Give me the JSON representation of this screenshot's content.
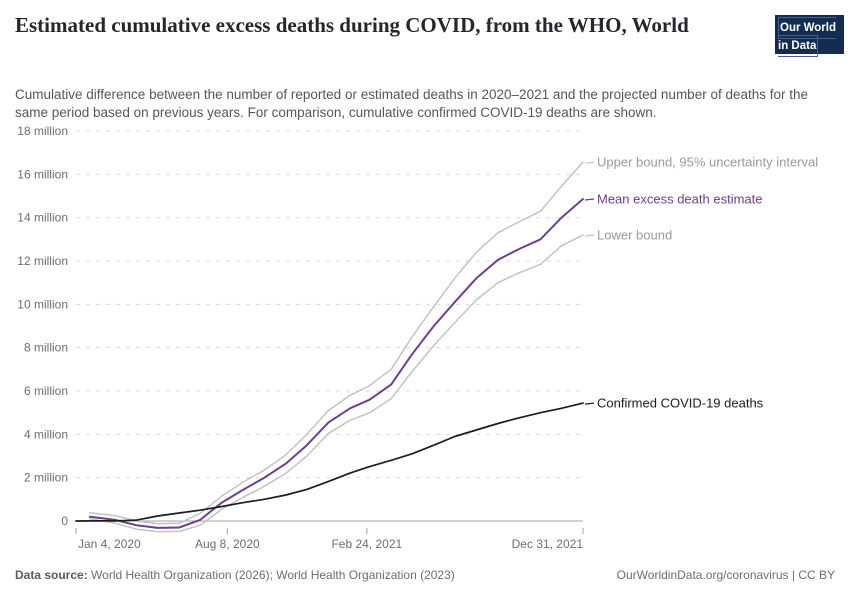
{
  "header": {
    "title": "Estimated cumulative excess deaths during COVID, from the WHO, World",
    "subtitle": "Cumulative difference between the number of reported or estimated deaths in 2020–2021 and the projected number of deaths for the same period based on previous years. For comparison, cumulative confirmed COVID-19 deaths are shown.",
    "logo": {
      "line1": "Our World",
      "line2": "in Data"
    }
  },
  "footer": {
    "datasource_label": "Data source:",
    "datasource_value": " World Health Organization (2026); World Health Organization (2023)",
    "link": "OurWorldinData.org/coronavirus",
    "separator": " | ",
    "license": "CC BY"
  },
  "colors": {
    "mean_line": "#6d3e91",
    "bound_line": "#c3c3c3",
    "bound_label": "#9a9a9a",
    "confirmed_line": "#1d1d1d",
    "gridline": "#dadada",
    "axis_line": "#a3a3a3",
    "axis_text": "#6e6e6e",
    "logo_bg": "#132c4f",
    "logo_red": "#d93a2b"
  },
  "chart_data": {
    "type": "line",
    "title": "Estimated cumulative excess deaths during COVID, from the WHO, World",
    "x_unit": "days since Jan 4, 2020",
    "y_unit": "million deaths",
    "ylim": [
      -0.7,
      18
    ],
    "grid": "horizontal-dashed",
    "legend_position": "end-of-line labels, right side",
    "yticks": [
      {
        "value": 0,
        "label": "0"
      },
      {
        "value": 2,
        "label": "2 million"
      },
      {
        "value": 4,
        "label": "4 million"
      },
      {
        "value": 6,
        "label": "6 million"
      },
      {
        "value": 8,
        "label": "8 million"
      },
      {
        "value": 10,
        "label": "10 million"
      },
      {
        "value": 12,
        "label": "12 million"
      },
      {
        "value": 14,
        "label": "14 million"
      },
      {
        "value": 16,
        "label": "16 million"
      },
      {
        "value": 18,
        "label": "18 million"
      }
    ],
    "xticks": [
      {
        "day": 0,
        "label": "Jan 4, 2020",
        "anchor": "start"
      },
      {
        "day": 217,
        "label": "Aug 8, 2020",
        "anchor": "middle"
      },
      {
        "day": 417,
        "label": "Feb 24, 2021",
        "anchor": "middle"
      },
      {
        "day": 727,
        "label": "Dec 31, 2021",
        "anchor": "end"
      }
    ],
    "series": [
      {
        "id": "upper-bound",
        "name": "Upper bound, 95% uncertainty interval",
        "color": "#c3c3c3",
        "label_color": "#9a9a9a",
        "width": 1.5,
        "points": [
          [
            20,
            0.38
          ],
          [
            56,
            0.25
          ],
          [
            87,
            0.0
          ],
          [
            117,
            -0.12
          ],
          [
            148,
            -0.1
          ],
          [
            178,
            0.35
          ],
          [
            209,
            1.15
          ],
          [
            240,
            1.8
          ],
          [
            270,
            2.35
          ],
          [
            301,
            3.05
          ],
          [
            331,
            4.0
          ],
          [
            362,
            5.1
          ],
          [
            393,
            5.8
          ],
          [
            421,
            6.25
          ],
          [
            452,
            7.0
          ],
          [
            482,
            8.5
          ],
          [
            513,
            9.9
          ],
          [
            543,
            11.2
          ],
          [
            574,
            12.4
          ],
          [
            605,
            13.3
          ],
          [
            635,
            13.8
          ],
          [
            666,
            14.3
          ],
          [
            696,
            15.45
          ],
          [
            727,
            16.56
          ]
        ]
      },
      {
        "id": "mean",
        "name": "Mean excess death estimate",
        "color": "#6d3e91",
        "label_color": "#6d3e91",
        "width": 2,
        "points": [
          [
            20,
            0.2
          ],
          [
            56,
            0.05
          ],
          [
            87,
            -0.2
          ],
          [
            117,
            -0.32
          ],
          [
            148,
            -0.3
          ],
          [
            178,
            0.05
          ],
          [
            209,
            0.85
          ],
          [
            240,
            1.45
          ],
          [
            270,
            2.0
          ],
          [
            301,
            2.65
          ],
          [
            331,
            3.5
          ],
          [
            362,
            4.55
          ],
          [
            393,
            5.2
          ],
          [
            421,
            5.6
          ],
          [
            452,
            6.3
          ],
          [
            482,
            7.7
          ],
          [
            513,
            9.0
          ],
          [
            543,
            10.1
          ],
          [
            574,
            11.2
          ],
          [
            605,
            12.05
          ],
          [
            635,
            12.55
          ],
          [
            666,
            13.0
          ],
          [
            696,
            14.0
          ],
          [
            727,
            14.86
          ]
        ]
      },
      {
        "id": "lower-bound",
        "name": "Lower bound",
        "color": "#c3c3c3",
        "label_color": "#9a9a9a",
        "width": 1.5,
        "points": [
          [
            20,
            0.1
          ],
          [
            56,
            -0.1
          ],
          [
            87,
            -0.38
          ],
          [
            117,
            -0.5
          ],
          [
            148,
            -0.48
          ],
          [
            178,
            -0.2
          ],
          [
            209,
            0.55
          ],
          [
            240,
            1.1
          ],
          [
            270,
            1.6
          ],
          [
            301,
            2.2
          ],
          [
            331,
            3.0
          ],
          [
            362,
            4.05
          ],
          [
            393,
            4.65
          ],
          [
            421,
            5.0
          ],
          [
            452,
            5.65
          ],
          [
            482,
            6.9
          ],
          [
            513,
            8.1
          ],
          [
            543,
            9.15
          ],
          [
            574,
            10.2
          ],
          [
            605,
            11.0
          ],
          [
            635,
            11.45
          ],
          [
            666,
            11.85
          ],
          [
            696,
            12.7
          ],
          [
            727,
            13.2
          ]
        ]
      },
      {
        "id": "confirmed",
        "name": "Confirmed COVID-19 deaths",
        "color": "#1d1d1d",
        "label_color": "#1d1d1d",
        "width": 1.7,
        "points": [
          [
            0,
            0
          ],
          [
            27,
            0.003
          ],
          [
            56,
            0.006
          ],
          [
            87,
            0.042
          ],
          [
            117,
            0.23
          ],
          [
            148,
            0.37
          ],
          [
            178,
            0.5
          ],
          [
            209,
            0.67
          ],
          [
            240,
            0.85
          ],
          [
            270,
            1.0
          ],
          [
            301,
            1.2
          ],
          [
            331,
            1.46
          ],
          [
            362,
            1.83
          ],
          [
            393,
            2.21
          ],
          [
            421,
            2.51
          ],
          [
            452,
            2.8
          ],
          [
            482,
            3.1
          ],
          [
            513,
            3.5
          ],
          [
            543,
            3.9
          ],
          [
            574,
            4.2
          ],
          [
            605,
            4.5
          ],
          [
            635,
            4.76
          ],
          [
            666,
            5.0
          ],
          [
            696,
            5.2
          ],
          [
            727,
            5.44
          ]
        ]
      }
    ]
  }
}
